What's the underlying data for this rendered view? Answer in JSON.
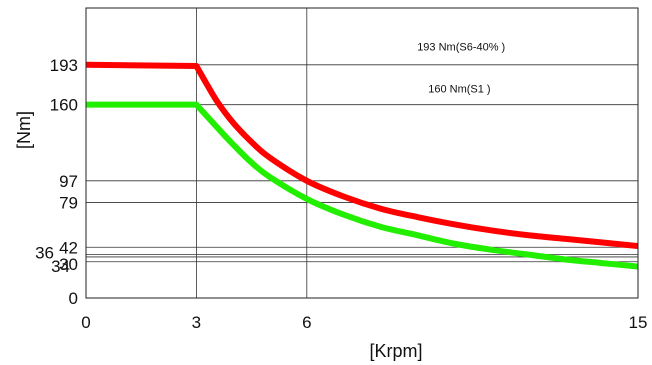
{
  "chart_data": {
    "type": "line",
    "xlabel": "[Krpm]",
    "ylabel": "[Nm]",
    "xlim": [
      0,
      15
    ],
    "ylim": [
      0,
      240
    ],
    "grid": true,
    "x_ticks": [
      "0",
      "3",
      "6",
      "15"
    ],
    "y_ticks": [
      "0",
      "30",
      "34",
      "36",
      "42",
      "79",
      "97",
      "160",
      "193"
    ],
    "series": [
      {
        "color": "#ff0000",
        "x": [
          0,
          3.0,
          3.3,
          3.6,
          4,
          4.5,
          5,
          6,
          7,
          8,
          9,
          10,
          11,
          12,
          13,
          14,
          15
        ],
        "y": [
          193,
          192,
          176,
          161,
          145,
          129,
          116,
          97,
          84,
          74,
          67,
          61,
          56,
          52,
          49,
          46,
          43
        ]
      },
      {
        "color": "#22ee00",
        "x": [
          0,
          3.0,
          3.3,
          3.6,
          4,
          4.5,
          5,
          6,
          7,
          8,
          9,
          10,
          11,
          12,
          13,
          14,
          15
        ],
        "y": [
          160,
          160,
          150,
          140,
          127,
          112,
          100,
          82,
          69,
          59,
          52,
          45,
          40,
          36,
          32,
          29,
          26
        ]
      }
    ],
    "annotations": [
      {
        "text": "193 Nm(S6-40% )",
        "x": 9.0,
        "y": 205
      },
      {
        "text": "160 Nm(S1 )",
        "x": 9.3,
        "y": 170
      }
    ]
  }
}
